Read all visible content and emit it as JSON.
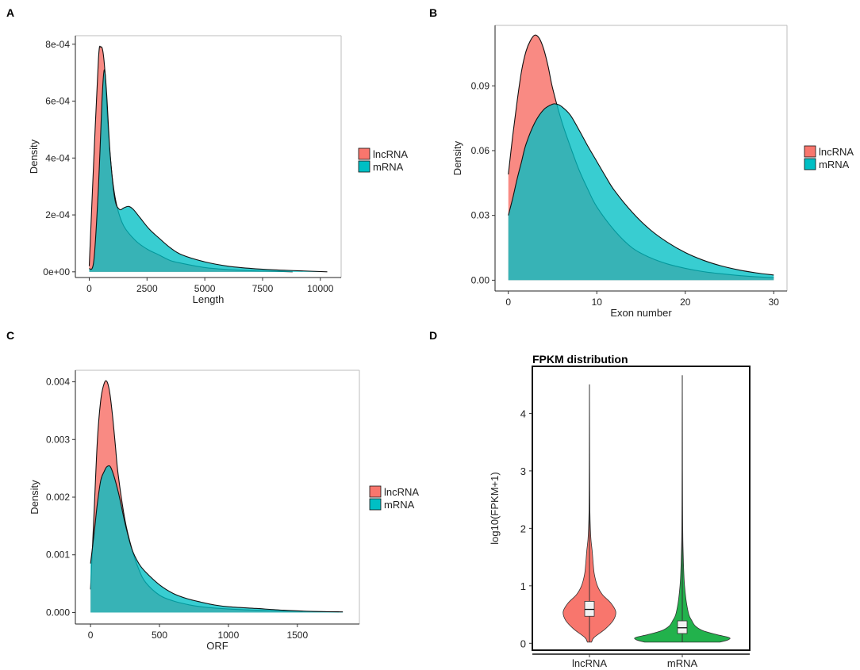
{
  "colors": {
    "lncRNA": "#F8766D",
    "mRNA": "#00BFC4",
    "violin_lncRNA": "#F8766D",
    "violin_mRNA": "#22B24C"
  },
  "chart_data": [
    {
      "panel": "A",
      "type": "area",
      "xlabel": "Length",
      "ylabel": "Density",
      "xlim": [
        -600,
        10900
      ],
      "ylim": [
        -2e-05,
        0.00083
      ],
      "xticks": [
        0,
        2500,
        5000,
        7500,
        10000
      ],
      "xtick_labels": [
        "0",
        "2500",
        "5000",
        "7500",
        "10000"
      ],
      "yticks": [
        0,
        0.0002,
        0.0004,
        0.0006,
        0.0008
      ],
      "ytick_labels": [
        "0e+00",
        "2e-04",
        "4e-04",
        "6e-04",
        "8e-04"
      ],
      "legend": [
        "lncRNA",
        "mRNA"
      ],
      "series": [
        {
          "name": "lncRNA",
          "x": [
            0,
            200,
            400,
            500,
            600,
            700,
            800,
            1000,
            1200,
            1500,
            2000,
            2500,
            3000,
            3500,
            4000,
            5000,
            6000,
            7000,
            8000,
            8800
          ],
          "y": [
            2e-05,
            0.0004,
            0.00075,
            0.00079,
            0.00077,
            0.00068,
            0.00052,
            0.00033,
            0.00023,
            0.00016,
            0.00011,
            8e-05,
            6e-05,
            4e-05,
            3e-05,
            1.5e-05,
            8e-06,
            4e-06,
            2e-06,
            0
          ]
        },
        {
          "name": "mRNA",
          "x": [
            0,
            200,
            400,
            550,
            650,
            750,
            900,
            1100,
            1300,
            1500,
            1700,
            1900,
            2200,
            2600,
            3000,
            3500,
            4000,
            5000,
            6000,
            7000,
            8000,
            9000,
            10300
          ],
          "y": [
            1e-05,
            4e-05,
            0.0003,
            0.0006,
            0.00071,
            0.00063,
            0.00042,
            0.00026,
            0.00022,
            0.000225,
            0.00023,
            0.00022,
            0.00019,
            0.00015,
            0.00012,
            8.5e-05,
            6e-05,
            3.5e-05,
            2e-05,
            1.2e-05,
            7e-06,
            4e-06,
            0
          ]
        }
      ]
    },
    {
      "panel": "B",
      "type": "area",
      "xlabel": "Exon number",
      "ylabel": "Density",
      "xlim": [
        -1.5,
        31.5
      ],
      "ylim": [
        -0.005,
        0.118
      ],
      "xticks": [
        0,
        10,
        20,
        30
      ],
      "xtick_labels": [
        "0",
        "10",
        "20",
        "30"
      ],
      "yticks": [
        0,
        0.03,
        0.06,
        0.09
      ],
      "ytick_labels": [
        "0.00",
        "0.03",
        "0.06",
        "0.09"
      ],
      "legend": [
        "lncRNA",
        "mRNA"
      ],
      "series": [
        {
          "name": "lncRNA",
          "x": [
            0,
            0.5,
            1,
            1.5,
            2,
            2.5,
            3,
            3.5,
            4,
            4.5,
            5,
            6,
            7,
            8,
            9,
            10,
            12,
            14,
            16,
            18,
            20,
            22,
            24,
            26,
            28,
            30
          ],
          "y": [
            0.049,
            0.067,
            0.083,
            0.097,
            0.106,
            0.111,
            0.1135,
            0.112,
            0.107,
            0.099,
            0.089,
            0.074,
            0.062,
            0.051,
            0.042,
            0.034,
            0.023,
            0.015,
            0.0105,
            0.0075,
            0.0055,
            0.004,
            0.003,
            0.0022,
            0.0016,
            0.0012
          ]
        },
        {
          "name": "mRNA",
          "x": [
            0,
            0.5,
            1,
            1.5,
            2,
            3,
            4,
            5,
            5.5,
            6,
            7,
            8,
            9,
            10,
            11,
            12,
            14,
            16,
            18,
            20,
            22,
            24,
            26,
            28,
            30
          ],
          "y": [
            0.03,
            0.038,
            0.047,
            0.055,
            0.063,
            0.073,
            0.079,
            0.0815,
            0.0815,
            0.0805,
            0.0765,
            0.0695,
            0.062,
            0.055,
            0.048,
            0.0415,
            0.0315,
            0.0235,
            0.0175,
            0.0128,
            0.0093,
            0.0067,
            0.0048,
            0.0034,
            0.0024
          ]
        }
      ]
    },
    {
      "panel": "C",
      "type": "area",
      "xlabel": "ORF",
      "ylabel": "Density",
      "xlim": [
        -110,
        1950
      ],
      "ylim": [
        -0.0002,
        0.0042
      ],
      "xticks": [
        0,
        500,
        1000,
        1500
      ],
      "xtick_labels": [
        "0",
        "500",
        "1000",
        "1500"
      ],
      "yticks": [
        0,
        0.001,
        0.002,
        0.003,
        0.004
      ],
      "ytick_labels": [
        "0.000",
        "0.001",
        "0.002",
        "0.003",
        "0.004"
      ],
      "legend": [
        "lncRNA",
        "mRNA"
      ],
      "series": [
        {
          "name": "lncRNA",
          "x": [
            0,
            25,
            50,
            75,
            100,
            120,
            140,
            160,
            180,
            200,
            250,
            300,
            350,
            400,
            500,
            600,
            700,
            800,
            1000,
            1200,
            1500,
            1800
          ],
          "y": [
            0.0004,
            0.0017,
            0.003,
            0.0037,
            0.00398,
            0.004,
            0.0038,
            0.0034,
            0.0029,
            0.0024,
            0.0016,
            0.0011,
            0.00075,
            0.00052,
            0.0003,
            0.0002,
            0.00014,
            0.0001,
            6e-05,
            4e-05,
            2e-05,
            1e-05
          ]
        },
        {
          "name": "mRNA",
          "x": [
            0,
            25,
            50,
            75,
            100,
            120,
            150,
            200,
            250,
            300,
            350,
            400,
            500,
            600,
            700,
            800,
            900,
            1000,
            1200,
            1400,
            1600,
            1830
          ],
          "y": [
            0.00085,
            0.00135,
            0.0019,
            0.0023,
            0.00245,
            0.00253,
            0.0025,
            0.0021,
            0.00155,
            0.0011,
            0.00085,
            0.0007,
            0.00048,
            0.00033,
            0.00024,
            0.00018,
            0.00013,
            0.0001,
            7e-05,
            4e-05,
            2e-05,
            1e-05
          ]
        }
      ]
    },
    {
      "panel": "D",
      "type": "violin",
      "title": "FPKM distribution",
      "xlabel": "",
      "ylabel": "log10(FPKM+1)",
      "ylim": [
        -0.12,
        4.82
      ],
      "yticks": [
        0,
        1,
        2,
        3,
        4
      ],
      "ytick_labels": [
        "0",
        "1",
        "2",
        "3",
        "4"
      ],
      "categories": [
        "lncRNA",
        "mRNA"
      ],
      "series": [
        {
          "name": "lncRNA",
          "max": 4.5,
          "q1": 0.47,
          "median": 0.59,
          "q3": 0.73,
          "min": 0.02,
          "profile_y": [
            0.02,
            0.1,
            0.25,
            0.4,
            0.55,
            0.7,
            0.85,
            1.0,
            1.2,
            1.4,
            1.6,
            1.8,
            2.0,
            2.3,
            2.7,
            3.2,
            3.7,
            4.2,
            4.5
          ],
          "profile_w": [
            0.07,
            0.15,
            0.52,
            0.78,
            0.86,
            0.7,
            0.42,
            0.26,
            0.16,
            0.12,
            0.09,
            0.05,
            0.03,
            0.015,
            0.01,
            0.007,
            0.005,
            0.003,
            0.002
          ]
        },
        {
          "name": "mRNA",
          "max": 4.66,
          "q1": 0.17,
          "median": 0.27,
          "q3": 0.39,
          "min": 0.02,
          "profile_y": [
            0.02,
            0.06,
            0.1,
            0.15,
            0.22,
            0.3,
            0.4,
            0.5,
            0.7,
            0.9,
            1.1,
            1.4,
            1.7,
            2.0,
            2.5,
            3.0,
            3.5,
            4.0,
            4.4,
            4.66
          ],
          "profile_w": [
            0.8,
            0.98,
            1.0,
            0.74,
            0.44,
            0.28,
            0.2,
            0.14,
            0.09,
            0.06,
            0.04,
            0.025,
            0.015,
            0.01,
            0.007,
            0.005,
            0.004,
            0.003,
            0.002,
            0.002
          ]
        }
      ]
    }
  ]
}
